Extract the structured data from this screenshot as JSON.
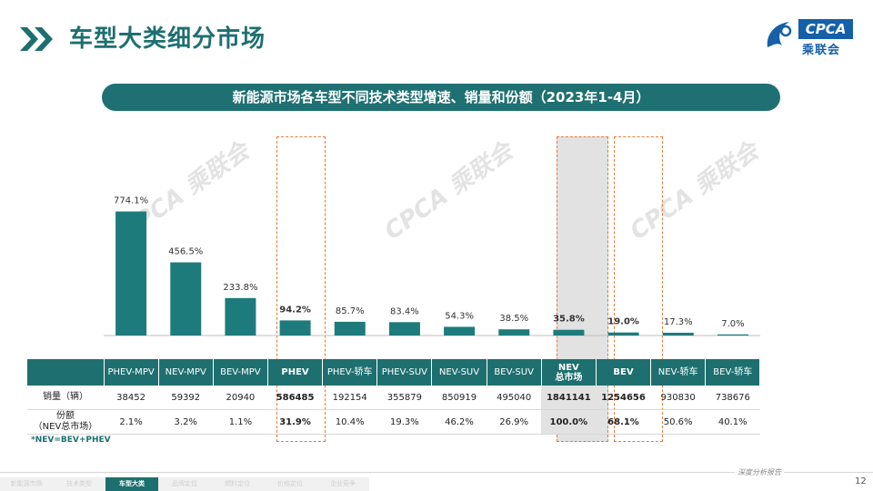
{
  "header": {
    "title": "车型大类细分市场",
    "logo_text": "CPCA",
    "logo_cn": "乘联会",
    "logo_sub": "CPCA"
  },
  "subtitle": "新能源市场各车型不同技术类型增速、销量和份额（2023年1-4月）",
  "watermark_text": "CPCA 乘联会",
  "chart_data": {
    "type": "bar",
    "title": "新能源市场各车型不同技术类型增速、销量和份额（2023年1-4月）",
    "categories": [
      "PHEV-MPV",
      "NEV-MPV",
      "BEV-MPV",
      "PHEV",
      "PHEV-轿车",
      "PHEV-SUV",
      "NEV-SUV",
      "BEV-SUV",
      "NEV 总市场",
      "BEV",
      "NEV-轿车",
      "BEV-轿车"
    ],
    "series": [
      {
        "values": [
          774.1,
          456.5,
          233.8,
          94.2,
          85.7,
          83.4,
          54.3,
          38.5,
          35.8,
          19.0,
          17.3,
          7.0
        ],
        "labels": [
          "774.1%",
          "456.5%",
          "233.8%",
          "94.2%",
          "85.7%",
          "83.4%",
          "54.3%",
          "38.5%",
          "35.8%",
          "19.0%",
          "17.3%",
          "7.0%"
        ],
        "bold": [
          false,
          false,
          false,
          true,
          false,
          false,
          false,
          false,
          true,
          true,
          false,
          false
        ]
      }
    ],
    "ylim": [
      0,
      800
    ],
    "bar_color": "#1e7b7c",
    "grid": false,
    "legend": "none"
  },
  "table": {
    "headers": [
      "PHEV-MPV",
      "NEV-MPV",
      "BEV-MPV",
      "PHEV",
      "PHEV-轿车",
      "PHEV-SUV",
      "NEV-SUV",
      "BEV-SUV",
      "NEV 总市场",
      "BEV",
      "NEV-轿车",
      "BEV-轿车"
    ],
    "header_line1": [
      "PHEV-MPV",
      "NEV-MPV",
      "BEV-MPV",
      "PHEV",
      "PHEV-轿车",
      "PHEV-SUV",
      "NEV-SUV",
      "BEV-SUV",
      "NEV",
      "BEV",
      "NEV-轿车",
      "BEV-轿车"
    ],
    "header_line2": [
      "",
      "",
      "",
      "",
      "",
      "",
      "",
      "",
      "总市场",
      "",
      "",
      ""
    ],
    "row1_label": "销量（辆）",
    "row1": [
      "38452",
      "59392",
      "20940",
      "586485",
      "192154",
      "355879",
      "850919",
      "495040",
      "1841141",
      "1254656",
      "930830",
      "738676"
    ],
    "row2_label_line1": "份额",
    "row2_label_line2": "（NEV总市场）",
    "row2": [
      "2.1%",
      "3.2%",
      "1.1%",
      "31.9%",
      "10.4%",
      "19.3%",
      "46.2%",
      "26.9%",
      "100.0%",
      "68.1%",
      "50.6%",
      "40.1%"
    ]
  },
  "footnote": "*NEV=BEV+PHEV",
  "footer": {
    "report_label": "深度分析报告",
    "page_number": "12",
    "nav": [
      "新能源市场",
      "技术类型",
      "车型大类",
      "品牌定位",
      "燃料定位",
      "价格定位",
      "企业竞争"
    ],
    "nav_active_index": 2
  },
  "colors": {
    "accent": "#1e6f70",
    "bar": "#1e7b7c",
    "highlight_border": "#e57a3c",
    "nev_column_bg": "#e2e2e2",
    "logo_blue": "#1560a8"
  }
}
